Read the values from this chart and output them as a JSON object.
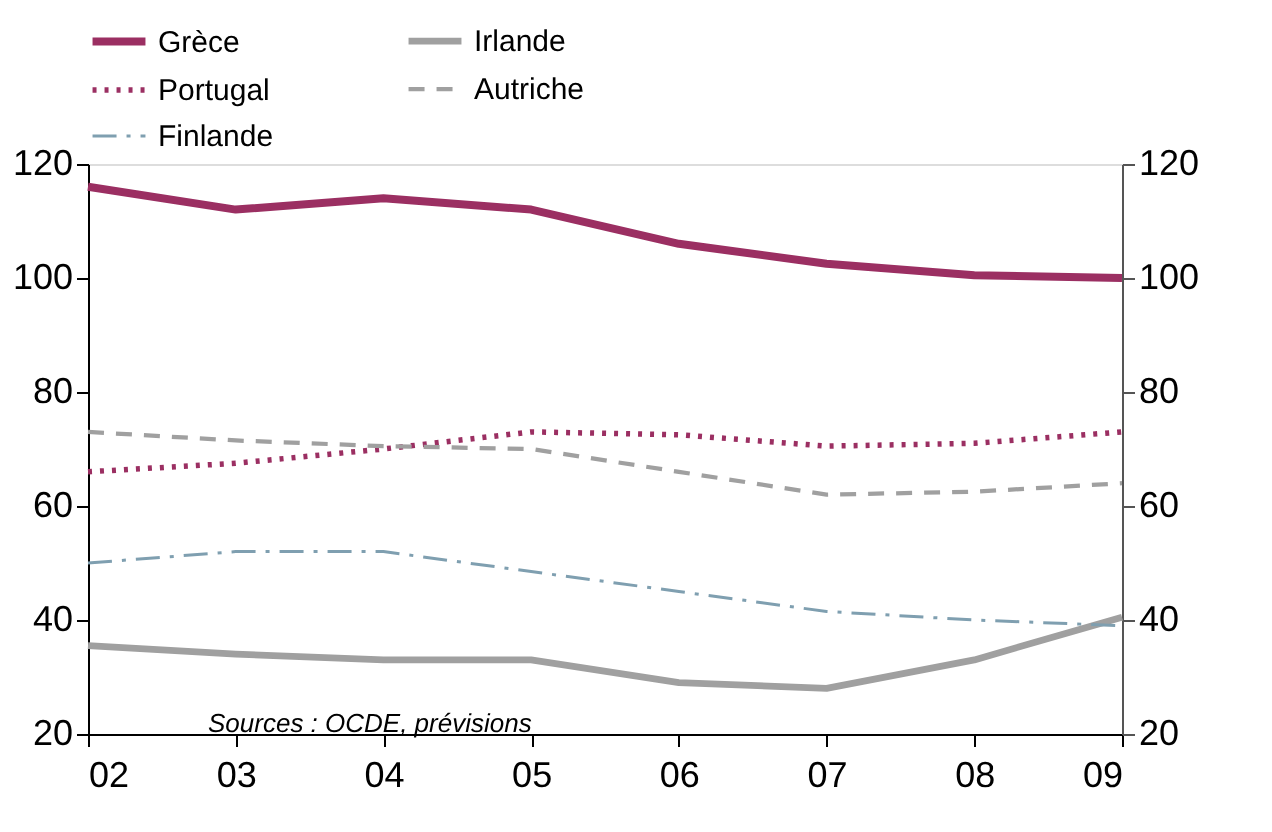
{
  "chart_data": {
    "type": "line",
    "categories": [
      "02",
      "03",
      "04",
      "05",
      "06",
      "07",
      "08",
      "09"
    ],
    "series": [
      {
        "name": "Grèce",
        "color": "#9b2f62",
        "line_style": "solid",
        "values": [
          116,
          112,
          114,
          112,
          106,
          102.5,
          100.5,
          100
        ]
      },
      {
        "name": "Irlande",
        "color": "#a0a0a0",
        "line_style": "solid",
        "values": [
          35.5,
          34,
          33,
          33,
          29,
          28,
          33,
          40.5
        ]
      },
      {
        "name": "Portugal",
        "color": "#9b2f62",
        "line_style": "dotted",
        "values": [
          66,
          67.5,
          70,
          73,
          72.5,
          70.5,
          71,
          73
        ]
      },
      {
        "name": "Autriche",
        "color": "#a0a0a0",
        "line_style": "dashed",
        "values": [
          73,
          71.5,
          70.5,
          70,
          66,
          62,
          62.5,
          64
        ]
      },
      {
        "name": "Finlande",
        "color": "#7f9fb0",
        "line_style": "dashdot",
        "values": [
          50,
          52,
          52,
          48.5,
          45,
          41.5,
          40,
          39
        ]
      }
    ],
    "ylim": [
      20,
      120
    ],
    "yticks": [
      20,
      40,
      60,
      80,
      100,
      120
    ],
    "y2lim": [
      20,
      120
    ],
    "y2ticks": [
      20,
      40,
      60,
      80,
      100,
      120
    ],
    "annotations": [
      "Sources : OCDE, prévisions"
    ],
    "grid": false,
    "legend": "top",
    "marker": "none"
  }
}
